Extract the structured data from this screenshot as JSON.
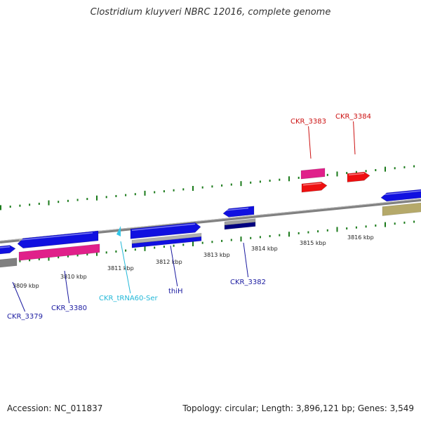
{
  "title": "Clostridium kluyveri NBRC 12016, complete genome",
  "footer": {
    "accession": "Accession: NC_011837",
    "summary": "Topology: circular; Length: 3,896,121 bp; Genes: 3,549"
  },
  "colors": {
    "backbone": "#808080",
    "tick": "#1a7a1a",
    "gene_blue": "#1010e0",
    "gene_navy": "#000080",
    "gene_magenta": "#e0208a",
    "gene_red": "#ee1010",
    "gene_gray": "#808080",
    "gene_khaki": "#b5a96a",
    "trna_cyan": "#33c6e8",
    "label_blue": "#1a1aa0",
    "label_red": "#cc1111",
    "label_cyan": "#22b8d8"
  },
  "scale_labels": [
    "3809 kbp",
    "3810 kbp",
    "3811 kbp",
    "3812 kbp",
    "3813 kbp",
    "3814 kbp",
    "3815 kbp",
    "3816 kbp"
  ],
  "gene_labels": [
    {
      "text": "CKR_3379",
      "color": "label_blue"
    },
    {
      "text": "CKR_3380",
      "color": "label_blue"
    },
    {
      "text": "CKR_tRNA60-Ser",
      "color": "label_cyan"
    },
    {
      "text": "thiH",
      "color": "label_blue"
    },
    {
      "text": "CKR_3382",
      "color": "label_blue"
    },
    {
      "text": "CKR_3383",
      "color": "label_red"
    },
    {
      "text": "CKR_3384",
      "color": "label_red"
    }
  ]
}
